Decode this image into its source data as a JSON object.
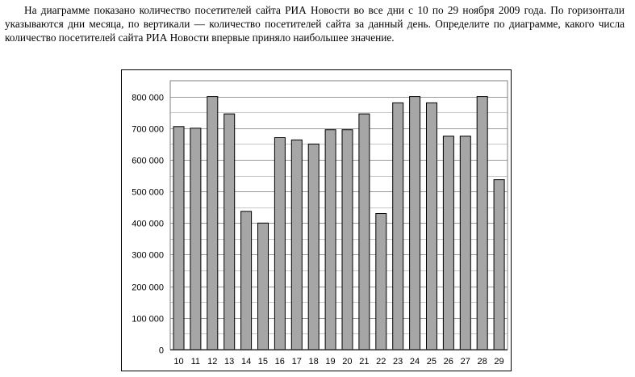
{
  "task": {
    "text": "На диаграмме показано количество посетителей сайта РИА Новости во все дни с 10 по 29 ноября 2009 года. По горизонтали указываются дни месяца, по вертикали — количество посетителей сайта за данный день. Определите по диаграмме, какого числа количество посетителей сайта РИА Новости впервые приняло наибольшее значение."
  },
  "chart_data": {
    "type": "bar",
    "categories": [
      "10",
      "11",
      "12",
      "13",
      "14",
      "15",
      "16",
      "17",
      "18",
      "19",
      "20",
      "21",
      "22",
      "23",
      "24",
      "25",
      "26",
      "27",
      "28",
      "29"
    ],
    "values": [
      705000,
      700000,
      800000,
      745000,
      437000,
      400000,
      670000,
      663000,
      650000,
      695000,
      695000,
      745000,
      430000,
      780000,
      800000,
      780000,
      675000,
      675000,
      800000,
      537000
    ],
    "yticks": [
      0,
      100000,
      200000,
      300000,
      400000,
      500000,
      600000,
      700000,
      800000
    ],
    "ytick_labels": [
      "0",
      "100 000",
      "200 000",
      "300 000",
      "400 000",
      "500 000",
      "600 000",
      "700 000",
      "800 000"
    ],
    "ylim": [
      0,
      850000
    ],
    "title": "",
    "xlabel": "",
    "ylabel": "",
    "grid": true,
    "bar_color": "#a6a6a6",
    "bar_edge_color": "#000000",
    "grid_color": "#9a9a9a"
  }
}
